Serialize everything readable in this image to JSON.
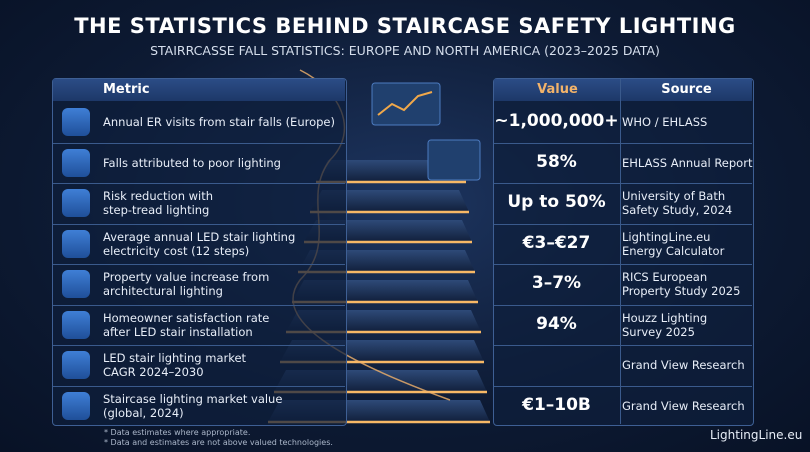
{
  "header": {
    "title": "THE STATISTICS BEHIND STAIRCASE SAFETY LIGHTING",
    "subtitle": "STAIRRCASSE FALL STATISTICS: EUROPE AND NORTH AMERICA (2023–2025 DATA)"
  },
  "table": {
    "columns": [
      "Metric",
      "Value",
      "Source"
    ],
    "rows": [
      {
        "metric": [
          "Annual ER visits from stair falls (Europe)"
        ],
        "value": "~1,000,000+",
        "source": [
          "WHO / EHLASS"
        ]
      },
      {
        "metric": [
          "Falls attributed to poor lighting"
        ],
        "value": "58%",
        "source": [
          "EHLASS Annual Report"
        ]
      },
      {
        "metric": [
          "Risk reduction with",
          "step-tread lighting"
        ],
        "value": "Up to 50%",
        "source": [
          "University of Bath",
          "Safety Study, 2024"
        ]
      },
      {
        "metric": [
          "Average annual LED stair lighting",
          "electricity cost (12 steps)"
        ],
        "value": "€3–€27",
        "source": [
          "LightingLine.eu",
          "Energy Calculator"
        ]
      },
      {
        "metric": [
          "Property value increase from",
          "architectural lighting"
        ],
        "value": "3–7%",
        "source": [
          "RICS European",
          "Property Study 2025"
        ]
      },
      {
        "metric": [
          "Homeowner satisfaction rate",
          "after LED stair installation"
        ],
        "value": "94%",
        "source": [
          "Houzz Lighting",
          "Survey 2025"
        ]
      },
      {
        "metric": [
          "LED stair lighting market",
          "CAGR 2024–2030"
        ],
        "source": [
          "Grand View Research"
        ]
      },
      {
        "metric": [
          "Staircase lighting market value",
          "(global, 2024)"
        ],
        "value": "€1–10B",
        "source": [
          "Grand View Research"
        ]
      }
    ]
  },
  "footer": {
    "notes": [
      "* Data estimates where appropriate.",
      "* Data and estimates are not above valued technologies."
    ],
    "brand": "LightingLine.eu"
  }
}
